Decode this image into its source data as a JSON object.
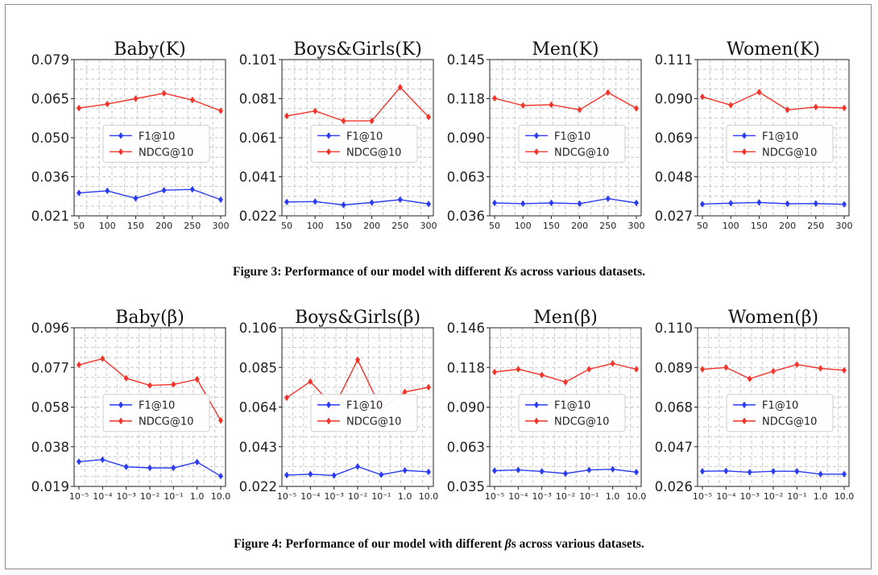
{
  "colors": {
    "f1": "#2a3cf2",
    "ndcg": "#f2342a",
    "grid": "#c8c8c8"
  },
  "legend": {
    "f1": "F1@10",
    "ndcg": "NDCG@10"
  },
  "figures": [
    {
      "caption_prefix": "Figure 3: Performance of our model with different ",
      "caption_symbol": "K",
      "caption_suffix": "s across various datasets."
    },
    {
      "caption_prefix": "Figure 4: Performance of our model with different ",
      "caption_symbol": "β",
      "caption_suffix": "s across various datasets."
    }
  ],
  "chart_data": [
    {
      "type": "line",
      "figure": 3,
      "title": "Baby(K)",
      "x": [
        "50",
        "100",
        "150",
        "200",
        "250",
        "300"
      ],
      "yticks": [
        "0.021",
        "0.036",
        "0.050",
        "0.065",
        "0.079"
      ],
      "ylim": [
        0.021,
        0.079
      ],
      "series": [
        {
          "name": "F1@10",
          "values": [
            0.0295,
            0.0303,
            0.0275,
            0.0305,
            0.0308,
            0.027
          ]
        },
        {
          "name": "NDCG@10",
          "values": [
            0.061,
            0.0625,
            0.0645,
            0.0665,
            0.064,
            0.06
          ]
        }
      ]
    },
    {
      "type": "line",
      "figure": 3,
      "title": "Boys&Girls(K)",
      "x": [
        "50",
        "100",
        "150",
        "200",
        "250",
        "300"
      ],
      "yticks": [
        "0.022",
        "0.041",
        "0.061",
        "0.081",
        "0.101"
      ],
      "ylim": [
        0.022,
        0.101
      ],
      "series": [
        {
          "name": "F1@10",
          "values": [
            0.029,
            0.0292,
            0.0275,
            0.0287,
            0.0302,
            0.028
          ]
        },
        {
          "name": "NDCG@10",
          "values": [
            0.0725,
            0.075,
            0.07,
            0.07,
            0.087,
            0.072
          ]
        }
      ]
    },
    {
      "type": "line",
      "figure": 3,
      "title": "Men(K)",
      "x": [
        "50",
        "100",
        "150",
        "200",
        "250",
        "300"
      ],
      "yticks": [
        "0.036",
        "0.063",
        "0.090",
        "0.118",
        "0.145"
      ],
      "ylim": [
        0.036,
        0.145
      ],
      "series": [
        {
          "name": "F1@10",
          "values": [
            0.045,
            0.0445,
            0.045,
            0.0445,
            0.048,
            0.045
          ]
        },
        {
          "name": "NDCG@10",
          "values": [
            0.118,
            0.113,
            0.1135,
            0.11,
            0.122,
            0.111
          ]
        }
      ]
    },
    {
      "type": "line",
      "figure": 3,
      "title": "Women(K)",
      "x": [
        "50",
        "100",
        "150",
        "200",
        "250",
        "300"
      ],
      "yticks": [
        "0.027",
        "0.048",
        "0.069",
        "0.090",
        "0.111"
      ],
      "ylim": [
        0.027,
        0.111
      ],
      "series": [
        {
          "name": "F1@10",
          "values": [
            0.0333,
            0.0338,
            0.0342,
            0.0335,
            0.0336,
            0.0332
          ]
        },
        {
          "name": "NDCG@10",
          "values": [
            0.091,
            0.0865,
            0.0935,
            0.084,
            0.0855,
            0.085
          ]
        }
      ]
    },
    {
      "type": "line",
      "figure": 4,
      "title": "Baby(β)",
      "x": [
        "10⁻⁵",
        "10⁻⁴",
        "10⁻³",
        "10⁻²",
        "10⁻¹",
        "1.0",
        "10.0"
      ],
      "yticks": [
        "0.019",
        "0.038",
        "0.058",
        "0.077",
        "0.096"
      ],
      "ylim": [
        0.019,
        0.096
      ],
      "series": [
        {
          "name": "F1@10",
          "values": [
            0.031,
            0.032,
            0.0285,
            0.028,
            0.028,
            0.0308,
            0.024
          ]
        },
        {
          "name": "NDCG@10",
          "values": [
            0.078,
            0.081,
            0.0715,
            0.068,
            0.0685,
            0.071,
            0.051
          ]
        }
      ]
    },
    {
      "type": "line",
      "figure": 4,
      "title": "Boys&Girls(β)",
      "x": [
        "10⁻⁵",
        "10⁻⁴",
        "10⁻³",
        "10⁻²",
        "10⁻¹",
        "1.0",
        "10.0"
      ],
      "yticks": [
        "0.022",
        "0.043",
        "0.064",
        "0.085",
        "0.106"
      ],
      "ylim": [
        0.022,
        0.106
      ],
      "series": [
        {
          "name": "F1@10",
          "values": [
            0.028,
            0.0285,
            0.0278,
            0.0325,
            0.0282,
            0.0305,
            0.0297
          ]
        },
        {
          "name": "NDCG@10",
          "values": [
            0.069,
            0.0775,
            0.064,
            0.089,
            0.063,
            0.072,
            0.0745
          ]
        }
      ]
    },
    {
      "type": "line",
      "figure": 4,
      "title": "Men(β)",
      "x": [
        "10⁻⁵",
        "10⁻⁴",
        "10⁻³",
        "10⁻²",
        "10⁻¹",
        "1.0",
        "10.0"
      ],
      "yticks": [
        "0.035",
        "0.063",
        "0.090",
        "0.118",
        "0.146"
      ],
      "ylim": [
        0.035,
        0.146
      ],
      "series": [
        {
          "name": "F1@10",
          "values": [
            0.046,
            0.0465,
            0.0455,
            0.044,
            0.0465,
            0.047,
            0.045
          ]
        },
        {
          "name": "NDCG@10",
          "values": [
            0.115,
            0.117,
            0.113,
            0.108,
            0.117,
            0.121,
            0.117
          ]
        }
      ]
    },
    {
      "type": "line",
      "figure": 4,
      "title": "Women(β)",
      "x": [
        "10⁻⁵",
        "10⁻⁴",
        "10⁻³",
        "10⁻²",
        "10⁻¹",
        "1.0",
        "10.0"
      ],
      "yticks": [
        "0.026",
        "0.047",
        "0.068",
        "0.089",
        "0.110"
      ],
      "ylim": [
        0.026,
        0.11
      ],
      "series": [
        {
          "name": "F1@10",
          "values": [
            0.034,
            0.0342,
            0.0335,
            0.034,
            0.034,
            0.0325,
            0.0325
          ]
        },
        {
          "name": "NDCG@10",
          "values": [
            0.088,
            0.089,
            0.083,
            0.087,
            0.0905,
            0.0885,
            0.0875
          ]
        }
      ]
    }
  ]
}
